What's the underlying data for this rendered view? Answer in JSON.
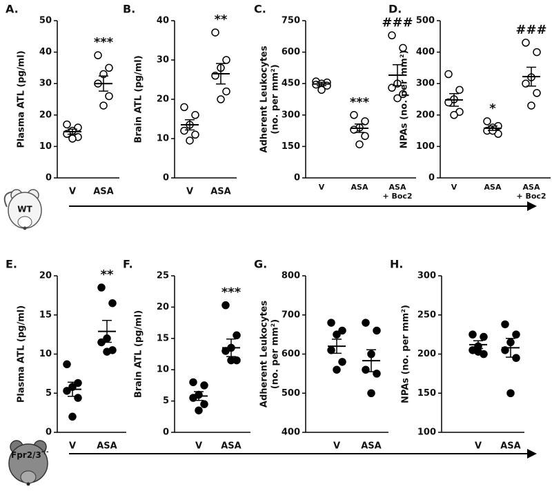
{
  "chart_data": [
    {
      "type": "strip",
      "title": "A.",
      "y_label": [
        "Plasma ATL (pg/ml)"
      ],
      "categories": [
        "V",
        "ASA"
      ],
      "marker": "open",
      "points": [
        [
          17,
          16,
          15,
          14,
          13,
          12.5
        ],
        [
          39,
          35,
          33,
          30,
          26,
          23
        ]
      ],
      "means": [
        14.7,
        30
      ],
      "sems": [
        0.8,
        2.4
      ],
      "annotations": [
        null,
        "***"
      ],
      "ylim": [
        0,
        50
      ],
      "yticks": [
        0,
        10,
        20,
        30,
        40,
        50
      ]
    },
    {
      "type": "strip",
      "title": "B.",
      "y_label": [
        "Brain ATL (pg/ml)"
      ],
      "categories": [
        "V",
        "ASA"
      ],
      "marker": "open",
      "points": [
        [
          18,
          16,
          13.5,
          12,
          11,
          9.5
        ],
        [
          37,
          30,
          28,
          26,
          22,
          20
        ]
      ],
      "means": [
        13.5,
        26.5
      ],
      "sems": [
        1.3,
        2.6
      ],
      "annotations": [
        null,
        "**"
      ],
      "ylim": [
        0,
        40
      ],
      "yticks": [
        0,
        10,
        20,
        30,
        40
      ]
    },
    {
      "type": "strip",
      "title": "C.",
      "y_label": [
        "Adherent Leukocytes",
        "(no. per mm²)"
      ],
      "categories": [
        "V",
        "ASA",
        "ASA + Boc2"
      ],
      "marker": "open",
      "points": [
        [
          460,
          455,
          450,
          445,
          440,
          420
        ],
        [
          300,
          270,
          240,
          230,
          200,
          160
        ],
        [
          680,
          620,
          450,
          430,
          400,
          380
        ]
      ],
      "means": [
        448,
        237,
        490
      ],
      "sems": [
        8,
        20,
        50
      ],
      "annotations": [
        null,
        "***",
        "###"
      ],
      "ylim": [
        0,
        750
      ],
      "yticks": [
        0,
        150,
        300,
        450,
        600,
        750
      ]
    },
    {
      "type": "strip",
      "title": "D.",
      "y_label": [
        "NPAs (no. per mm²)"
      ],
      "categories": [
        "V",
        "ASA",
        "ASA + Boc2"
      ],
      "marker": "open",
      "points": [
        [
          330,
          280,
          250,
          240,
          210,
          200
        ],
        [
          180,
          165,
          160,
          150,
          140,
          150
        ],
        [
          430,
          400,
          320,
          300,
          270,
          230
        ]
      ],
      "means": [
        248,
        158,
        322
      ],
      "sems": [
        20,
        7,
        30
      ],
      "annotations": [
        null,
        "*",
        "###"
      ],
      "ylim": [
        0,
        500
      ],
      "yticks": [
        0,
        100,
        200,
        300,
        400,
        500
      ]
    },
    {
      "type": "strip",
      "title": "E.",
      "y_label": [
        "Plasma ATL (pg/ml)"
      ],
      "categories": [
        "V",
        "ASA"
      ],
      "marker": "filled",
      "points": [
        [
          8.7,
          6.3,
          5.8,
          5.3,
          4.4,
          2
        ],
        [
          18.5,
          16.5,
          12,
          11.5,
          10.5,
          10.3
        ]
      ],
      "means": [
        5.5,
        12.9
      ],
      "sems": [
        0.9,
        1.4
      ],
      "annotations": [
        null,
        "**"
      ],
      "ylim": [
        0,
        20
      ],
      "yticks": [
        0,
        5,
        10,
        15,
        20
      ]
    },
    {
      "type": "strip",
      "title": "F.",
      "y_label": [
        "Brain ATL (pg/ml)"
      ],
      "categories": [
        "V",
        "ASA"
      ],
      "marker": "filled",
      "points": [
        [
          8,
          7.5,
          6,
          5.5,
          4.5,
          3.5
        ],
        [
          20.3,
          15.5,
          13.5,
          13,
          11.5,
          11.5
        ]
      ],
      "means": [
        5.8,
        13.5
      ],
      "sems": [
        0.7,
        1.4
      ],
      "annotations": [
        null,
        "***"
      ],
      "ylim": [
        0,
        25
      ],
      "yticks": [
        0,
        5,
        10,
        15,
        20,
        25
      ]
    },
    {
      "type": "strip",
      "title": "G.",
      "y_label": [
        "Adherent Leukocytes",
        "(no. per mm²)"
      ],
      "categories": [
        "V",
        "ASA"
      ],
      "marker": "filled",
      "points": [
        [
          680,
          660,
          650,
          610,
          580,
          560
        ],
        [
          680,
          660,
          600,
          560,
          550,
          500
        ]
      ],
      "means": [
        620,
        583
      ],
      "sems": [
        18,
        28
      ],
      "annotations": [
        null,
        null
      ],
      "ylim": [
        400,
        800
      ],
      "yticks": [
        400,
        500,
        600,
        700,
        800
      ]
    },
    {
      "type": "strip",
      "title": "H.",
      "y_label": [
        "NPAs (no. per mm²)"
      ],
      "categories": [
        "V",
        "ASA"
      ],
      "marker": "filled",
      "points": [
        [
          225,
          222,
          210,
          205,
          200,
          203
        ],
        [
          238,
          225,
          215,
          205,
          195,
          150
        ]
      ],
      "means": [
        212,
        208
      ],
      "sems": [
        5,
        12
      ],
      "annotations": [
        null,
        null
      ],
      "ylim": [
        100,
        300
      ],
      "yticks": [
        100,
        150,
        200,
        250,
        300
      ]
    }
  ],
  "genotypes": [
    {
      "name": "WT"
    },
    {
      "name": "Fpr2/3",
      "superscript": "-/-"
    }
  ]
}
